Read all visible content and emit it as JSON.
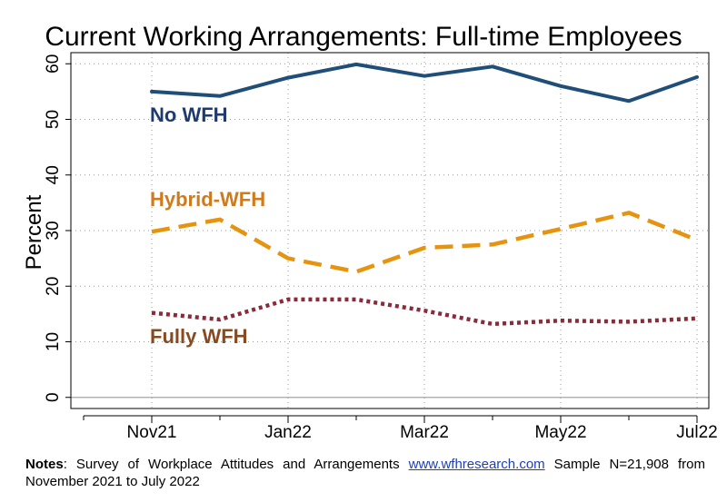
{
  "chart_data": {
    "type": "line",
    "title": "Current Working Arrangements: Full-time Employees",
    "ylabel": "Percent",
    "xlabel": "",
    "categories": [
      "Nov21",
      "Dec21",
      "Jan22",
      "Feb22",
      "Mar22",
      "Apr22",
      "May22",
      "Jun22",
      "Jul22"
    ],
    "x_tick_labels": [
      {
        "index": 0,
        "label": "Nov21"
      },
      {
        "index": 2,
        "label": "Jan22"
      },
      {
        "index": 4,
        "label": "Mar22"
      },
      {
        "index": 6,
        "label": "May22"
      },
      {
        "index": 8,
        "label": "Jul22"
      }
    ],
    "ylim": [
      -2,
      62
    ],
    "yticks": [
      0,
      10,
      20,
      30,
      40,
      50,
      60
    ],
    "grid": true,
    "series": [
      {
        "name": "No WFH",
        "color": "#1f4e79",
        "style": "solid",
        "values": [
          55.0,
          54.2,
          57.5,
          59.9,
          57.8,
          59.5,
          56.0,
          53.3,
          57.6
        ]
      },
      {
        "name": "Hybrid-WFH",
        "color": "#e6940f",
        "style": "dashed",
        "values": [
          29.8,
          32.0,
          25.0,
          22.6,
          26.9,
          27.5,
          30.3,
          33.2,
          28.3
        ]
      },
      {
        "name": "Fully WFH",
        "color": "#8b2a3a",
        "style": "dotted",
        "values": [
          15.2,
          14.0,
          17.6,
          17.6,
          15.6,
          13.2,
          13.8,
          13.6,
          14.2
        ]
      }
    ],
    "series_label_colors": {
      "No WFH": "#1f3b6e",
      "Hybrid-WFH": "#d07a1c",
      "Fully WFH": "#8a4a1f"
    }
  },
  "notes": {
    "label": "Notes",
    "text_before": ": Survey of Workplace Attitudes and Arrangements ",
    "link": "www.wfhresearch.com",
    "text_after": " Sample N=21,908 from November 2021 to July 2022"
  }
}
